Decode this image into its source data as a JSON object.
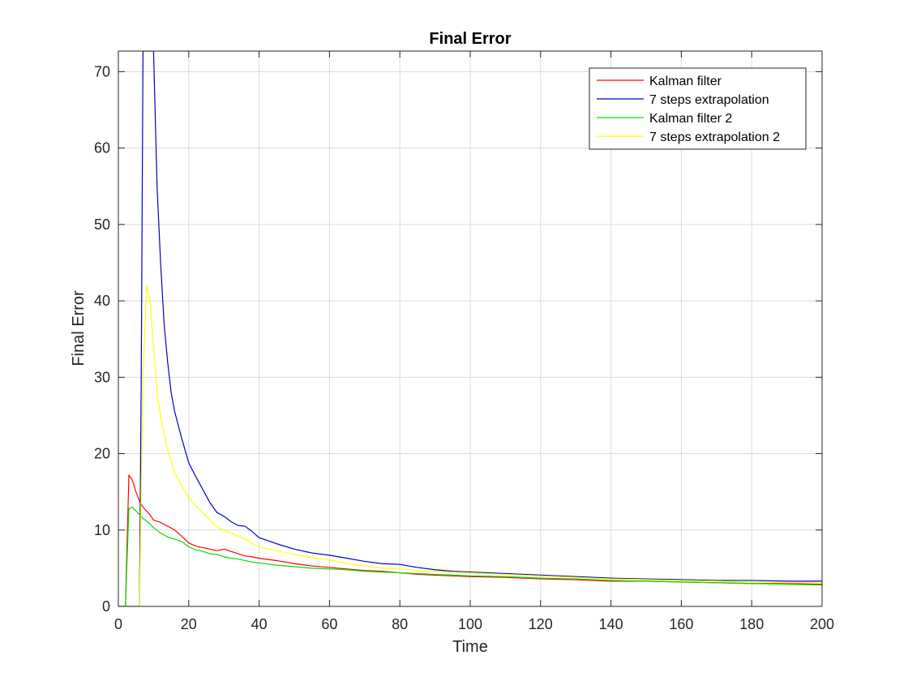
{
  "chart_data": {
    "type": "line",
    "title": "Final Error",
    "xlabel": "Time",
    "ylabel": "Final Error",
    "xlim": [
      0,
      200
    ],
    "ylim": [
      0,
      72.7
    ],
    "xticks": [
      0,
      20,
      40,
      60,
      80,
      100,
      120,
      140,
      160,
      180,
      200
    ],
    "yticks": [
      0,
      10,
      20,
      30,
      40,
      50,
      60,
      70
    ],
    "grid": true,
    "legend_position": "top-right",
    "series": [
      {
        "name": "Kalman filter",
        "color": "#ff0000",
        "x": [
          0,
          1,
          2,
          3,
          4,
          5,
          6,
          7,
          8,
          9,
          10,
          12,
          14,
          16,
          18,
          20,
          22,
          24,
          26,
          28,
          30,
          32,
          34,
          36,
          38,
          40,
          45,
          50,
          55,
          60,
          65,
          70,
          75,
          80,
          85,
          90,
          95,
          100,
          110,
          120,
          130,
          140,
          150,
          160,
          170,
          180,
          190,
          200
        ],
        "y": [
          0,
          0,
          0,
          17.2,
          16.5,
          15.0,
          13.8,
          13.0,
          12.5,
          12.0,
          11.3,
          11.0,
          10.5,
          10.0,
          9.2,
          8.3,
          7.9,
          7.7,
          7.5,
          7.3,
          7.5,
          7.2,
          6.9,
          6.6,
          6.5,
          6.3,
          6.0,
          5.6,
          5.3,
          5.1,
          4.9,
          4.7,
          4.6,
          4.4,
          4.2,
          4.1,
          4.0,
          3.9,
          3.8,
          3.6,
          3.5,
          3.3,
          3.3,
          3.2,
          3.1,
          3.0,
          3.0,
          2.9
        ]
      },
      {
        "name": "7 steps extrapolation",
        "color": "#0000c8",
        "x": [
          0,
          1,
          2,
          3,
          4,
          5,
          6,
          6.5,
          7,
          8,
          9,
          10,
          11,
          12,
          13,
          14,
          15,
          16,
          18,
          20,
          22,
          24,
          26,
          28,
          30,
          32,
          34,
          36,
          38,
          40,
          45,
          50,
          55,
          60,
          65,
          70,
          75,
          80,
          85,
          90,
          95,
          100,
          110,
          120,
          130,
          140,
          150,
          160,
          170,
          180,
          190,
          200
        ],
        "y": [
          0,
          0,
          0,
          0,
          0,
          0,
          0,
          30,
          72.7,
          72.7,
          72.7,
          72.7,
          55,
          45,
          37,
          32,
          28,
          25.5,
          22.0,
          18.8,
          17.0,
          15.3,
          13.6,
          12.3,
          11.8,
          11.1,
          10.6,
          10.5,
          9.8,
          9.0,
          8.2,
          7.5,
          7.0,
          6.7,
          6.3,
          5.9,
          5.6,
          5.5,
          5.1,
          4.8,
          4.6,
          4.5,
          4.3,
          4.1,
          3.9,
          3.7,
          3.6,
          3.5,
          3.4,
          3.4,
          3.3,
          3.3
        ]
      },
      {
        "name": "Kalman filter 2",
        "color": "#00dd00",
        "x": [
          0,
          1,
          2,
          3,
          4,
          5,
          6,
          7,
          8,
          9,
          10,
          12,
          14,
          16,
          18,
          20,
          22,
          24,
          26,
          28,
          30,
          32,
          34,
          36,
          38,
          40,
          45,
          50,
          55,
          60,
          65,
          70,
          75,
          80,
          85,
          90,
          95,
          100,
          110,
          120,
          130,
          140,
          150,
          160,
          170,
          180,
          190,
          200
        ],
        "y": [
          0,
          0,
          0,
          12.8,
          13.0,
          12.5,
          12.0,
          11.5,
          11.2,
          10.8,
          10.3,
          9.6,
          9.1,
          8.8,
          8.5,
          7.8,
          7.4,
          7.2,
          6.9,
          6.8,
          6.5,
          6.3,
          6.2,
          6.0,
          5.8,
          5.7,
          5.4,
          5.2,
          5.0,
          4.9,
          4.8,
          4.6,
          4.5,
          4.4,
          4.3,
          4.2,
          4.1,
          4.0,
          3.9,
          3.7,
          3.6,
          3.4,
          3.3,
          3.2,
          3.1,
          3.0,
          2.9,
          2.8
        ]
      },
      {
        "name": "7 steps extrapolation 2",
        "color": "#ffff00",
        "x": [
          0,
          1,
          2,
          3,
          4,
          5,
          6,
          6.5,
          7,
          8,
          9,
          10,
          11,
          12,
          13,
          14,
          15,
          16,
          18,
          20,
          22,
          24,
          26,
          28,
          30,
          32,
          34,
          36,
          38,
          40,
          45,
          50,
          55,
          60,
          65,
          70,
          75,
          80,
          85,
          90,
          95,
          100,
          110,
          120,
          130,
          140,
          150,
          160,
          170,
          180,
          190,
          200
        ],
        "y": [
          0,
          0,
          0,
          0,
          0,
          0,
          0,
          15,
          30,
          42,
          40,
          34,
          28,
          25,
          22.5,
          20.5,
          19,
          17.5,
          15.8,
          14.2,
          13.2,
          12.3,
          11.3,
          10.4,
          10.0,
          9.6,
          9.2,
          8.9,
          8.2,
          7.8,
          7.3,
          6.8,
          6.4,
          6.1,
          5.6,
          5.3,
          5.0,
          4.9,
          4.7,
          4.6,
          4.5,
          4.4,
          4.2,
          4.0,
          3.8,
          3.6,
          3.5,
          3.4,
          3.3,
          3.2,
          3.1,
          3.1
        ]
      }
    ]
  }
}
